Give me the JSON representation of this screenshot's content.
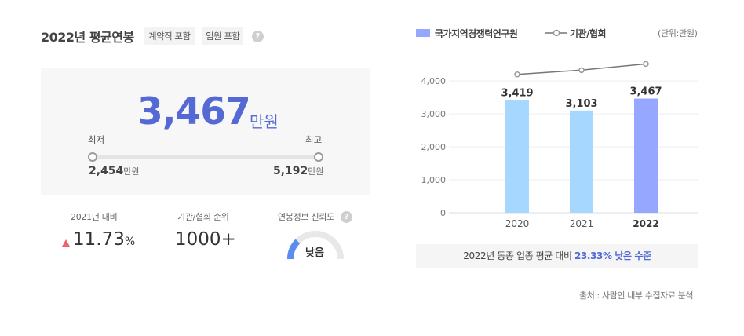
{
  "header": {
    "title": "2022년 평균연봉",
    "tags": [
      "계약직 포함",
      "임원 포함"
    ],
    "help_icon": "question-icon"
  },
  "salary": {
    "amount": "3,467",
    "unit": "만원",
    "min_label": "최저",
    "max_label": "최고",
    "min_value": "2,454",
    "max_value": "5,192",
    "value_unit": "만원"
  },
  "stats": {
    "change": {
      "label": "2021년 대비",
      "value": "11.73",
      "unit": "%",
      "direction": "up",
      "color": "#f0616d"
    },
    "rank": {
      "label": "기관/협회 순위",
      "value": "1000+"
    },
    "reliability": {
      "label": "연봉정보 신뢰도",
      "value": "낮음",
      "level": 0.25
    }
  },
  "chart_legend": {
    "bar_series": "국가지역경쟁력연구원",
    "line_series": "기관/협회",
    "unit": "(단위:만원)"
  },
  "chart_data": {
    "type": "bar",
    "categories": [
      "2020",
      "2021",
      "2022"
    ],
    "series": [
      {
        "name": "국가지역경쟁력연구원",
        "type": "bar",
        "values": [
          3419,
          3103,
          3467
        ],
        "labels": [
          "3,419",
          "3,103",
          "3,467"
        ],
        "colors": [
          "#a6d8ff",
          "#a6d8ff",
          "#96a7ff"
        ]
      },
      {
        "name": "기관/협회",
        "type": "line",
        "values": [
          4200,
          4330,
          4520
        ]
      }
    ],
    "y_ticks": [
      "4,000",
      "3,000",
      "2,000",
      "1,000",
      "0"
    ],
    "ylim": [
      0,
      4600
    ],
    "grid": true
  },
  "comparison": {
    "prefix": "2022년 동종 업종 평균 대비",
    "highlight": "23.33% 낮은 수준"
  },
  "source": "출처 : 사람인 내부 수집자료 분석"
}
